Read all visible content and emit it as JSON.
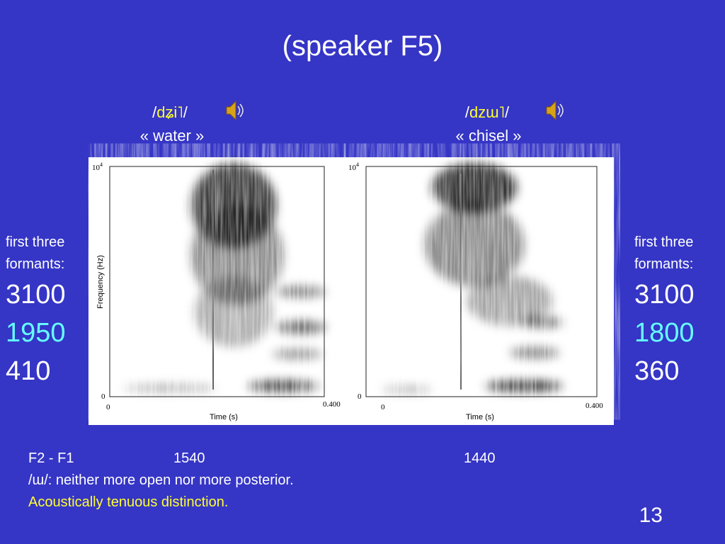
{
  "title": "(speaker F5)",
  "words": [
    {
      "ipa": [
        "/",
        "dʑi˥",
        "/"
      ],
      "gloss": "« water »"
    },
    {
      "ipa": [
        "/",
        "dzɯ˥",
        "/"
      ],
      "gloss": "« chisel »"
    }
  ],
  "spectrogram": {
    "y_top": "10",
    "y_top_exp": "4",
    "y_bottom": "0",
    "x_start": "0",
    "x_end": "0.400",
    "y_label": "Frequency (Hz)",
    "x_label": "Time (s)"
  },
  "formants_heading": [
    "first three",
    "formants:"
  ],
  "formants": [
    [
      3100,
      1950,
      410
    ],
    [
      3100,
      1800,
      360
    ]
  ],
  "difference": {
    "label": "F2 - F1",
    "values": [
      1540,
      1440
    ]
  },
  "notes": [
    "/ɯ/: neither more open nor more posterior.",
    "Acoustically tenuous distinction."
  ],
  "page_number": 13
}
